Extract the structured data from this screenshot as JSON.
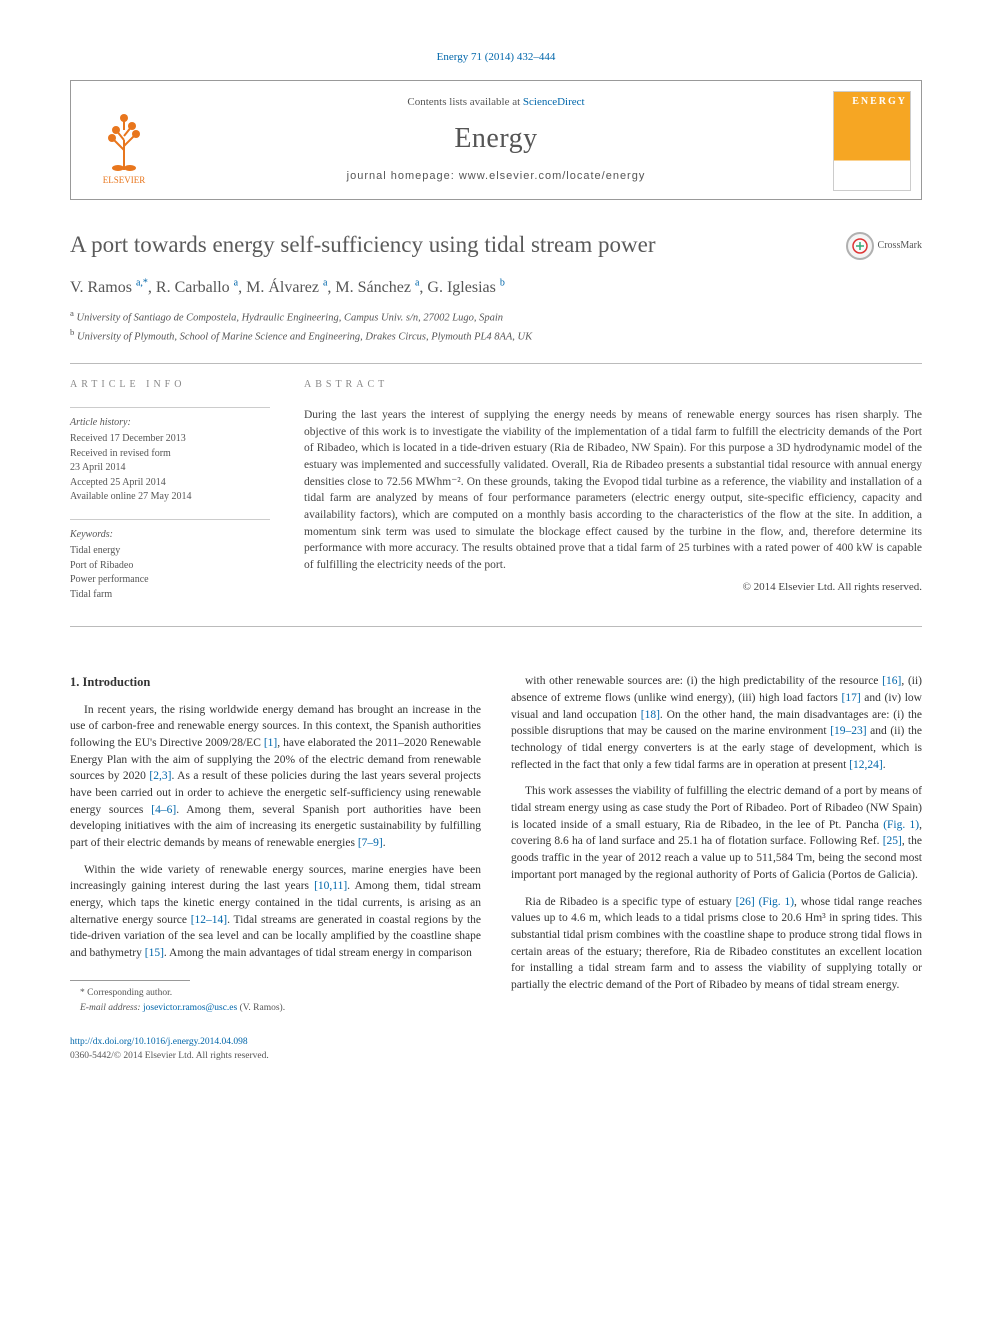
{
  "citation": "Energy 71 (2014) 432–444",
  "header": {
    "contents_prefix": "Contents lists available at ",
    "contents_link": "ScienceDirect",
    "journal_name": "Energy",
    "homepage_prefix": "journal homepage: ",
    "homepage_url": "www.elsevier.com/locate/energy",
    "publisher_name": "ELSEVIER",
    "cover_label": "ENERGY"
  },
  "article": {
    "title": "A port towards energy self-sufficiency using tidal stream power",
    "crossmark_label": "CrossMark",
    "authors_html": "V. Ramos <sup>a,*</sup>, R. Carballo <sup>a</sup>, M. Álvarez <sup>a</sup>, M. Sánchez <sup>a</sup>, G. Iglesias <sup>b</sup>",
    "affiliations": [
      {
        "sup": "a",
        "text": "University of Santiago de Compostela, Hydraulic Engineering, Campus Univ. s/n, 27002 Lugo, Spain"
      },
      {
        "sup": "b",
        "text": "University of Plymouth, School of Marine Science and Engineering, Drakes Circus, Plymouth PL4 8AA, UK"
      }
    ]
  },
  "info": {
    "heading": "ARTICLE INFO",
    "history_label": "Article history:",
    "history": [
      "Received 17 December 2013",
      "Received in revised form",
      "23 April 2014",
      "Accepted 25 April 2014",
      "Available online 27 May 2014"
    ],
    "keywords_label": "Keywords:",
    "keywords": [
      "Tidal energy",
      "Port of Ribadeo",
      "Power performance",
      "Tidal farm"
    ]
  },
  "abstract": {
    "heading": "ABSTRACT",
    "text": "During the last years the interest of supplying the energy needs by means of renewable energy sources has risen sharply. The objective of this work is to investigate the viability of the implementation of a tidal farm to fulfill the electricity demands of the Port of Ribadeo, which is located in a tide-driven estuary (Ria de Ribadeo, NW Spain). For this purpose a 3D hydrodynamic model of the estuary was implemented and successfully validated. Overall, Ria de Ribadeo presents a substantial tidal resource with annual energy densities close to 72.56 MWhm⁻². On these grounds, taking the Evopod tidal turbine as a reference, the viability and installation of a tidal farm are analyzed by means of four performance parameters (electric energy output, site-specific efficiency, capacity and availability factors), which are computed on a monthly basis according to the characteristics of the flow at the site. In addition, a momentum sink term was used to simulate the blockage effect caused by the turbine in the flow, and, therefore determine its performance with more accuracy. The results obtained prove that a tidal farm of 25 turbines with a rated power of 400 kW is capable of fulfilling the electricity needs of the port.",
    "copyright": "© 2014 Elsevier Ltd. All rights reserved."
  },
  "body": {
    "section_heading": "1. Introduction",
    "paragraphs": [
      "In recent years, the rising worldwide energy demand has brought an increase in the use of carbon-free and renewable energy sources. In this context, the Spanish authorities following the EU's Directive 2009/28/EC [1], have elaborated the 2011–2020 Renewable Energy Plan with the aim of supplying the 20% of the electric demand from renewable sources by 2020 [2,3]. As a result of these policies during the last years several projects have been carried out in order to achieve the energetic self-sufficiency using renewable energy sources [4–6]. Among them, several Spanish port authorities have been developing initiatives with the aim of increasing its energetic sustainability by fulfilling part of their electric demands by means of renewable energies [7–9].",
      "Within the wide variety of renewable energy sources, marine energies have been increasingly gaining interest during the last years [10,11]. Among them, tidal stream energy, which taps the kinetic energy contained in the tidal currents, is arising as an alternative energy source [12–14]. Tidal streams are generated in coastal regions by the tide-driven variation of the sea level and can be locally amplified by the coastline shape and bathymetry [15]. Among the main advantages of tidal stream energy in comparison",
      "with other renewable sources are: (i) the high predictability of the resource [16], (ii) absence of extreme flows (unlike wind energy), (iii) high load factors [17] and (iv) low visual and land occupation [18]. On the other hand, the main disadvantages are: (i) the possible disruptions that may be caused on the marine environment [19–23] and (ii) the technology of tidal energy converters is at the early stage of development, which is reflected in the fact that only a few tidal farms are in operation at present [12,24].",
      "This work assesses the viability of fulfilling the electric demand of a port by means of tidal stream energy using as case study the Port of Ribadeo. Port of Ribadeo (NW Spain) is located inside of a small estuary, Ria de Ribadeo, in the lee of Pt. Pancha (Fig. 1), covering 8.6 ha of land surface and 25.1 ha of flotation surface. Following Ref. [25], the goods traffic in the year of 2012 reach a value up to 511,584 Tm, being the second most important port managed by the regional authority of Ports of Galicia (Portos de Galicia).",
      "Ria de Ribadeo is a specific type of estuary [26] (Fig. 1), whose tidal range reaches values up to 4.6 m, which leads to a tidal prisms close to 20.6 Hm³ in spring tides. This substantial tidal prism combines with the coastline shape to produce strong tidal flows in certain areas of the estuary; therefore, Ria de Ribadeo constitutes an excellent location for installing a tidal stream farm and to assess the viability of supplying totally or partially the electric demand of the Port of Ribadeo by means of tidal stream energy."
    ],
    "ref_links": [
      "[1]",
      "[2,3]",
      "[4–6]",
      "[7–9]",
      "[10,11]",
      "[12–14]",
      "[15]",
      "[16]",
      "[17]",
      "[18]",
      "[19–23]",
      "[12,24]",
      "(Fig. 1)",
      "[25]",
      "[26]",
      "(Fig. 1)"
    ]
  },
  "footnotes": {
    "corr": "* Corresponding author.",
    "email_label": "E-mail address: ",
    "email": "josevictor.ramos@usc.es",
    "email_who": " (V. Ramos)."
  },
  "footer": {
    "doi": "http://dx.doi.org/10.1016/j.energy.2014.04.098",
    "issn_line": "0360-5442/© 2014 Elsevier Ltd. All rights reserved."
  },
  "colors": {
    "link": "#0066aa",
    "publisher_orange": "#e8761d",
    "cover_orange": "#f6a623",
    "heading_gray": "#5a5a5a",
    "rule": "#bbbbbb"
  },
  "typography": {
    "body_pt": 11.5,
    "title_pt": 23,
    "journal_pt": 28,
    "info_pt": 10,
    "footnote_pt": 9.5
  }
}
